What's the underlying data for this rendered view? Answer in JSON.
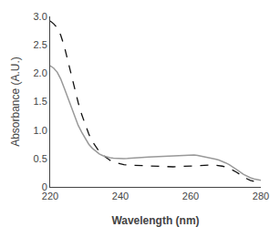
{
  "chart_data": {
    "type": "line",
    "xlabel": "Wavelength (nm)",
    "ylabel": "Absorbance (A.U.)",
    "xlim": [
      220,
      280
    ],
    "ylim": [
      0,
      3.0
    ],
    "xticks": [
      220,
      240,
      260,
      280
    ],
    "yticks": [
      0,
      0.5,
      {
        "value": 1.0,
        "label": "1.0"
      },
      1.5,
      {
        "value": 2.0,
        "label": "2.0"
      },
      2.5,
      {
        "value": 3.0,
        "label": "3.0"
      }
    ],
    "grid": false,
    "x": [
      220,
      221,
      222,
      223,
      224,
      225,
      226,
      227,
      228,
      229,
      230,
      231,
      232,
      233,
      234,
      235,
      236,
      237,
      238,
      239,
      240,
      241,
      242,
      243,
      244,
      245,
      246,
      247,
      248,
      249,
      250,
      251,
      252,
      253,
      254,
      255,
      256,
      257,
      258,
      259,
      260,
      261,
      262,
      263,
      264,
      265,
      266,
      267,
      268,
      269,
      270,
      271,
      272,
      273,
      274,
      275,
      276,
      277,
      278,
      279,
      280
    ],
    "series": [
      {
        "color": "#111111",
        "line_style": "dashed",
        "values": [
          2.92,
          2.87,
          2.8,
          2.67,
          2.48,
          2.22,
          1.96,
          1.71,
          1.48,
          1.27,
          1.09,
          0.93,
          0.8,
          0.7,
          0.62,
          0.56,
          0.51,
          0.47,
          0.44,
          0.42,
          0.4,
          0.39,
          0.385,
          0.382,
          0.378,
          0.374,
          0.37,
          0.368,
          0.365,
          0.362,
          0.36,
          0.358,
          0.356,
          0.355,
          0.354,
          0.353,
          0.355,
          0.358,
          0.362,
          0.366,
          0.37,
          0.374,
          0.378,
          0.382,
          0.386,
          0.388,
          0.386,
          0.382,
          0.375,
          0.365,
          0.348,
          0.325,
          0.295,
          0.26,
          0.22,
          0.178,
          0.145,
          0.115,
          0.095,
          0.08,
          0.068
        ]
      },
      {
        "color": "#999999",
        "line_style": "solid",
        "values": [
          2.13,
          2.09,
          2.02,
          1.9,
          1.74,
          1.57,
          1.39,
          1.23,
          1.08,
          0.96,
          0.85,
          0.75,
          0.68,
          0.63,
          0.58,
          0.55,
          0.53,
          0.515,
          0.505,
          0.5,
          0.498,
          0.498,
          0.5,
          0.502,
          0.505,
          0.51,
          0.515,
          0.52,
          0.525,
          0.528,
          0.53,
          0.532,
          0.534,
          0.535,
          0.536,
          0.538,
          0.542,
          0.548,
          0.555,
          0.56,
          0.565,
          0.56,
          0.552,
          0.542,
          0.53,
          0.518,
          0.505,
          0.49,
          0.472,
          0.45,
          0.422,
          0.39,
          0.352,
          0.31,
          0.265,
          0.222,
          0.188,
          0.16,
          0.14,
          0.125,
          0.115
        ]
      }
    ]
  }
}
